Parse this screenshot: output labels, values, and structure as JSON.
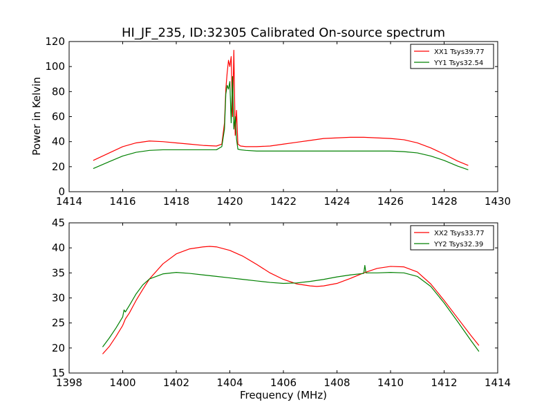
{
  "figure": {
    "title": "HI_JF_235, ID:32305 Calibrated On-source spectrum",
    "xlabel": "Frequency (MHz)",
    "ylabel": "Power in Kelvin"
  },
  "chart_data": [
    {
      "type": "line",
      "title": "HI_JF_235, ID:32305 Calibrated On-source spectrum",
      "ylabel": "Power in Kelvin",
      "xlabel": "",
      "xlim": [
        1414,
        1430
      ],
      "ylim": [
        0,
        120
      ],
      "xticks": [
        1414,
        1416,
        1418,
        1420,
        1422,
        1424,
        1426,
        1428,
        1430
      ],
      "yticks": [
        0,
        20,
        40,
        60,
        80,
        100,
        120
      ],
      "grid": false,
      "legend": "top-right",
      "series": [
        {
          "name": "XX1 Tsys39.77",
          "color": "#ff0000",
          "x": [
            1414.9,
            1415.5,
            1416.0,
            1416.5,
            1417.0,
            1417.5,
            1418.0,
            1418.5,
            1419.0,
            1419.5,
            1419.7,
            1419.8,
            1419.85,
            1419.9,
            1419.95,
            1420.0,
            1420.05,
            1420.1,
            1420.15,
            1420.2,
            1420.25,
            1420.3,
            1420.4,
            1420.6,
            1421.0,
            1421.5,
            1422.0,
            1422.5,
            1423.0,
            1423.5,
            1424.0,
            1424.5,
            1425.0,
            1425.5,
            1426.0,
            1426.5,
            1427.0,
            1427.5,
            1428.0,
            1428.5,
            1428.9
          ],
          "y": [
            25,
            31,
            36,
            39,
            40.5,
            40,
            39,
            38,
            37,
            36.5,
            38,
            55,
            82,
            95,
            105,
            100,
            108,
            60,
            113,
            45,
            65,
            38,
            36.5,
            36,
            36,
            36.5,
            38,
            39.5,
            41,
            42.5,
            43,
            43.5,
            43.5,
            43,
            42.5,
            41.5,
            39,
            35,
            30,
            24.5,
            21
          ]
        },
        {
          "name": "YY1 Tsys32.54",
          "color": "#008000",
          "x": [
            1414.9,
            1415.5,
            1416.0,
            1416.5,
            1417.0,
            1417.5,
            1418.0,
            1418.5,
            1419.0,
            1419.5,
            1419.7,
            1419.8,
            1419.85,
            1419.9,
            1419.95,
            1420.0,
            1420.05,
            1420.1,
            1420.15,
            1420.2,
            1420.25,
            1420.3,
            1420.4,
            1420.6,
            1421.0,
            1421.5,
            1422.0,
            1422.5,
            1423.0,
            1423.5,
            1424.0,
            1424.5,
            1425.0,
            1425.5,
            1426.0,
            1426.5,
            1427.0,
            1427.5,
            1428.0,
            1428.5,
            1428.9
          ],
          "y": [
            18.5,
            24,
            28.5,
            31.5,
            33,
            33.5,
            33.5,
            33.5,
            33.5,
            33.5,
            36,
            50,
            78,
            85,
            82,
            88,
            55,
            92,
            50,
            60,
            42,
            34,
            33.5,
            33,
            32.5,
            32.5,
            32.5,
            32.5,
            32.5,
            32.5,
            32.5,
            32.5,
            32.5,
            32.5,
            32.5,
            32,
            31,
            28.5,
            25,
            20.5,
            17.5
          ]
        }
      ]
    },
    {
      "type": "line",
      "title": "",
      "xlabel": "Frequency (MHz)",
      "ylabel": "",
      "xlim": [
        1398,
        1414
      ],
      "ylim": [
        15,
        45
      ],
      "xticks": [
        1398,
        1400,
        1402,
        1404,
        1406,
        1408,
        1410,
        1412,
        1414
      ],
      "yticks": [
        15,
        20,
        25,
        30,
        35,
        40,
        45
      ],
      "grid": false,
      "legend": "top-right",
      "series": [
        {
          "name": "XX2 Tsys33.77",
          "color": "#ff0000",
          "x": [
            1399.25,
            1399.5,
            1399.75,
            1400.0,
            1400.1,
            1400.25,
            1400.5,
            1400.75,
            1401.0,
            1401.5,
            1402.0,
            1402.5,
            1403.0,
            1403.25,
            1403.5,
            1404.0,
            1404.5,
            1405.0,
            1405.5,
            1406.0,
            1406.5,
            1407.0,
            1407.25,
            1407.5,
            1408.0,
            1408.5,
            1409.0,
            1409.5,
            1410.0,
            1410.5,
            1411.0,
            1411.5,
            1412.0,
            1412.5,
            1413.0,
            1413.3
          ],
          "y": [
            18.8,
            20.3,
            22.3,
            24.5,
            25.8,
            27,
            29.5,
            31.7,
            33.8,
            36.8,
            38.8,
            39.8,
            40.2,
            40.3,
            40.2,
            39.5,
            38.3,
            36.7,
            35,
            33.7,
            32.8,
            32.4,
            32.3,
            32.4,
            32.9,
            33.9,
            35,
            35.9,
            36.3,
            36.2,
            35.2,
            32.8,
            29.5,
            26,
            22.5,
            20.5
          ]
        },
        {
          "name": "YY2 Tsys32.39",
          "color": "#008000",
          "x": [
            1399.25,
            1399.5,
            1399.75,
            1400.0,
            1400.05,
            1400.1,
            1400.25,
            1400.5,
            1400.75,
            1401.0,
            1401.5,
            1402.0,
            1402.5,
            1403.0,
            1403.5,
            1404.0,
            1404.5,
            1405.0,
            1405.5,
            1406.0,
            1406.5,
            1407.0,
            1407.5,
            1408.0,
            1408.5,
            1409.0,
            1409.04,
            1409.08,
            1409.5,
            1410.0,
            1410.5,
            1411.0,
            1411.5,
            1412.0,
            1412.5,
            1413.0,
            1413.3
          ],
          "y": [
            20.2,
            22,
            24,
            26.2,
            27.6,
            27.2,
            28.5,
            30.8,
            32.6,
            33.8,
            34.8,
            35.1,
            34.9,
            34.6,
            34.3,
            34,
            33.7,
            33.4,
            33.1,
            32.9,
            33,
            33.3,
            33.7,
            34.2,
            34.6,
            34.9,
            36.5,
            35,
            35,
            35.1,
            35,
            34.3,
            32.3,
            29,
            25.3,
            21.5,
            19.3
          ]
        }
      ]
    }
  ]
}
